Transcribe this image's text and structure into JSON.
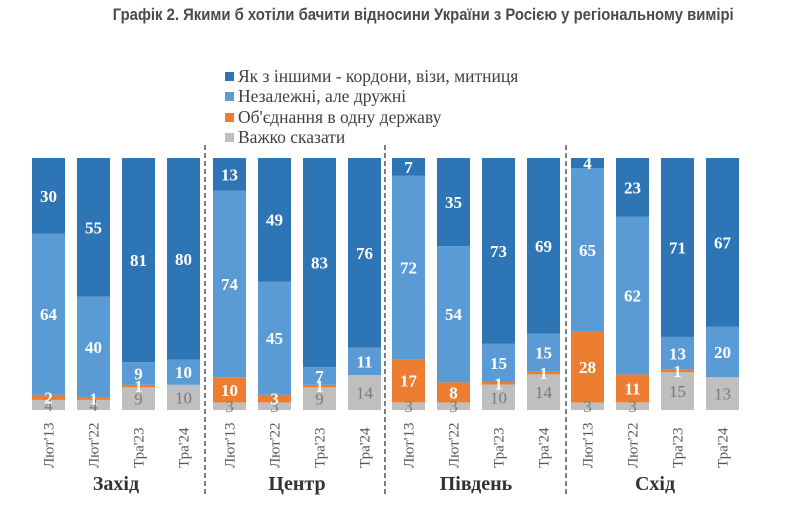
{
  "title": "Графік 2. Якими б хотіли бачити відносини України з Росією у регіональному вимірі",
  "chart_data": {
    "type": "bar",
    "stacked": true,
    "orientation": "vertical",
    "title": "Графік 2. Якими б хотіли бачити відносини України з Росією у регіональному вимірі",
    "xlabel": "",
    "ylabel": "",
    "ylim": [
      0,
      100
    ],
    "grid": false,
    "legend_position": "top-center",
    "groups": [
      "Захід",
      "Центр",
      "Південь",
      "Схід"
    ],
    "periods": [
      "Лют'13",
      "Лют'22",
      "Тра'23",
      "Тра'24"
    ],
    "categories": [
      "Лют'13",
      "Лют'22",
      "Тра'23",
      "Тра'24",
      "Лют'13",
      "Лют'22",
      "Тра'23",
      "Тра'24",
      "Лют'13",
      "Лют'22",
      "Тра'23",
      "Тра'24",
      "Лют'13",
      "Лют'22",
      "Тра'23",
      "Тра'24"
    ],
    "series": [
      {
        "name": "Важко сказати",
        "color": "#bfbfbf",
        "values": [
          4,
          4,
          9,
          10,
          3,
          3,
          9,
          14,
          3,
          3,
          10,
          14,
          3,
          3,
          15,
          13
        ]
      },
      {
        "name": "Об'єднання в одну державу",
        "color": "#ed7d31",
        "values": [
          2,
          1,
          1,
          null,
          10,
          3,
          1,
          null,
          17,
          8,
          1,
          1,
          28,
          11,
          1,
          null
        ]
      },
      {
        "name": "Незалежні, але дружні",
        "color": "#5b9bd5",
        "values": [
          64,
          40,
          9,
          10,
          74,
          45,
          7,
          11,
          72,
          54,
          15,
          15,
          65,
          62,
          13,
          20
        ]
      },
      {
        "name": "Як з іншими - кордони, візи, митниця",
        "color": "#2e75b6",
        "values": [
          30,
          55,
          81,
          80,
          13,
          49,
          83,
          76,
          7,
          35,
          73,
          69,
          4,
          23,
          71,
          67
        ]
      }
    ]
  },
  "legend": [
    {
      "label": "Як з іншими - кордони, візи, митниця",
      "color": "#2e75b6"
    },
    {
      "label": "Незалежні, але дружні",
      "color": "#5b9bd5"
    },
    {
      "label": "Об'єднання в одну державу",
      "color": "#ed7d31"
    },
    {
      "label": "Важко сказати",
      "color": "#bfbfbf"
    }
  ]
}
